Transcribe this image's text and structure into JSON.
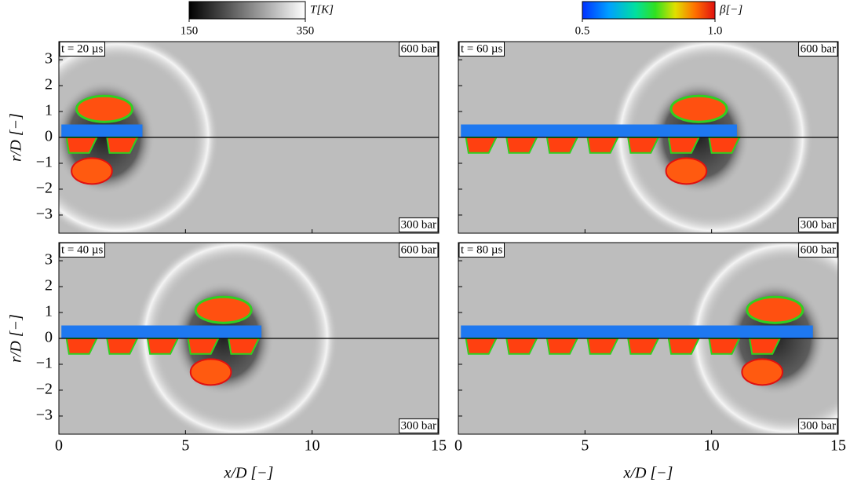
{
  "colorbars": [
    {
      "label": "T[K]",
      "lim": [
        150,
        350
      ],
      "ticks": [
        150,
        350
      ]
    },
    {
      "label": "β[−]",
      "lim": [
        0.5,
        1.0
      ],
      "ticks": [
        0.5,
        {
          "value": 1.0,
          "label": "1.0"
        }
      ]
    }
  ],
  "panels": [
    {
      "time": "t = 20 µs",
      "top_label": "600 bar",
      "bottom_label": "300 bar"
    },
    {
      "time": "t = 60 µs",
      "top_label": "600 bar",
      "bottom_label": "300 bar"
    },
    {
      "time": "t = 40 µs",
      "top_label": "600 bar",
      "bottom_label": "300 bar"
    },
    {
      "time": "t = 80 µs",
      "top_label": "600 bar",
      "bottom_label": "300 bar"
    }
  ],
  "x_axis": {
    "label": "x/D [−]",
    "lim": [
      0,
      15
    ],
    "ticks": [
      0,
      5,
      10,
      15
    ]
  },
  "y_axis": {
    "label": "r/D [−]",
    "lim": [
      -3.7,
      3.7
    ],
    "ticks": [
      {
        "value": -3,
        "label": "−3"
      },
      {
        "value": -2,
        "label": "−2"
      },
      {
        "value": -1,
        "label": "−1"
      },
      0,
      1,
      2,
      3
    ]
  }
}
